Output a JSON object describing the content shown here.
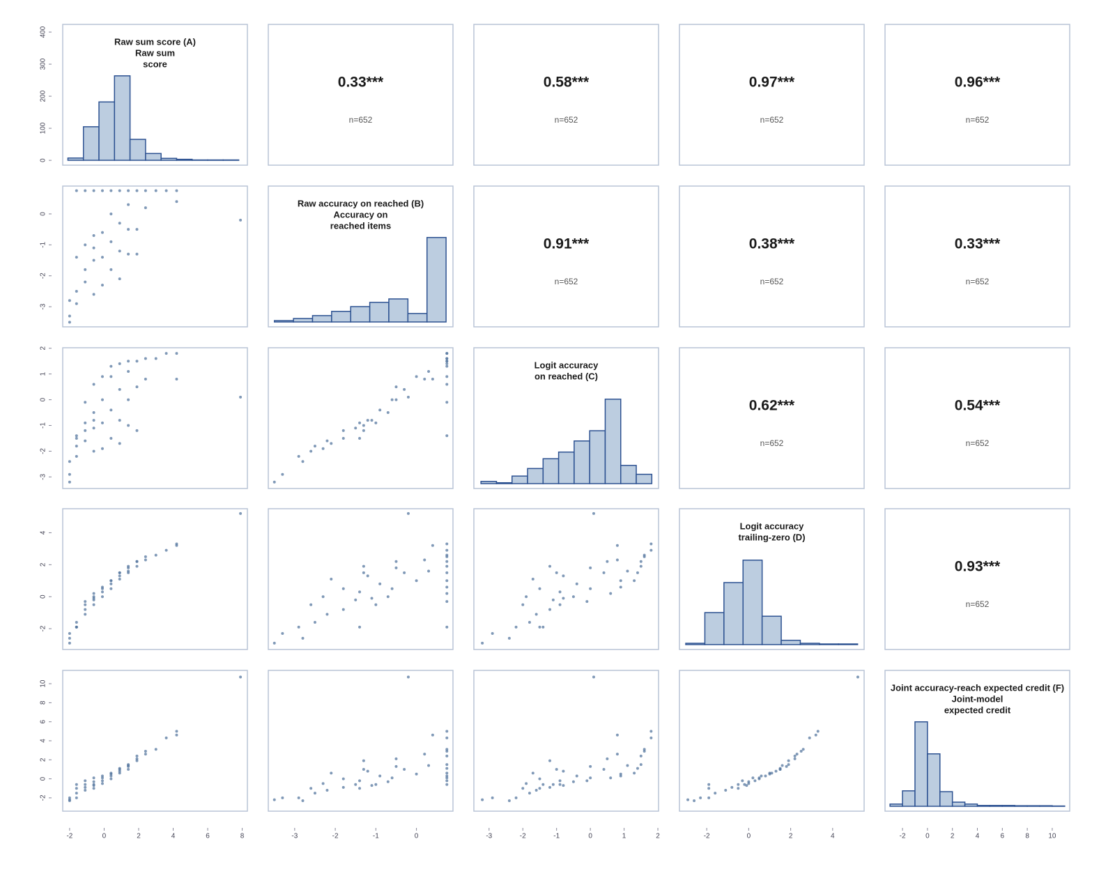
{
  "chart_data": {
    "type": "scatter_matrix",
    "point_color": "#55779f",
    "hist_fill": "#bccde0",
    "hist_stroke": "#2c5191",
    "panel_border": "#b8c4d6",
    "count_ylim": [
      -15,
      424
    ],
    "count_ticks": [
      0,
      100,
      200,
      300,
      400
    ],
    "variables": [
      {
        "label": [
          "Raw sum score (A)",
          "Raw sum",
          "score"
        ],
        "lim": [
          -2.4,
          8.3
        ],
        "xticks": [
          -2,
          0,
          2,
          4,
          6,
          8
        ],
        "hist_bins": [
          -2.1,
          -1.2,
          -0.3,
          0.6,
          1.5,
          2.4,
          3.3,
          4.2,
          5.1,
          6.0,
          6.9,
          7.8
        ],
        "hist_counts": [
          7,
          104,
          181,
          262,
          65,
          21,
          6,
          3,
          1,
          1,
          1
        ]
      },
      {
        "label": [
          "Raw accuracy on reached (B)",
          "Accuracy on",
          "reached items"
        ],
        "lim": [
          -3.65,
          0.9
        ],
        "xticks": [
          -3,
          -2,
          -1,
          0
        ],
        "yticks": [
          -3,
          -2,
          -1,
          0
        ],
        "hist_bins": [
          -3.5,
          -3.03,
          -2.56,
          -2.09,
          -1.62,
          -1.15,
          -0.68,
          -0.21,
          0.26,
          0.73
        ],
        "hist_counts": [
          5,
          13,
          24,
          40,
          58,
          74,
          87,
          32,
          319
        ]
      },
      {
        "label": [
          "Logit accuracy",
          "on reached (C)"
        ],
        "lim": [
          -3.45,
          2.02
        ],
        "xticks": [
          -3,
          -2,
          -1,
          0,
          1,
          2
        ],
        "yticks": [
          -3,
          -2,
          -1,
          0,
          1,
          2
        ],
        "hist_bins": [
          -3.24,
          -2.78,
          -2.32,
          -1.86,
          -1.4,
          -0.94,
          -0.48,
          -0.02,
          0.44,
          0.9,
          1.36,
          1.82
        ],
        "hist_counts": [
          5,
          2,
          17,
          34,
          56,
          71,
          96,
          119,
          190,
          41,
          21
        ]
      },
      {
        "label": [
          "Logit accuracy",
          "trailing-zero (D)"
        ],
        "lim": [
          -3.3,
          5.5
        ],
        "xticks": [
          -2,
          0,
          2,
          4
        ],
        "yticks": [
          -2,
          0,
          2,
          4
        ],
        "hist_bins": [
          -3.0,
          -2.09,
          -1.18,
          -0.27,
          0.64,
          1.55,
          2.46,
          3.37,
          4.28,
          5.19
        ],
        "hist_counts": [
          4,
          97,
          188,
          256,
          86,
          13,
          4,
          2,
          2
        ]
      },
      {
        "label": [
          "Joint accuracy-reach expected credit (F)",
          "Joint-model",
          "expected credit"
        ],
        "lim": [
          -3.4,
          11.4
        ],
        "xticks": [
          -2,
          0,
          2,
          4,
          6,
          8,
          10
        ],
        "yticks": [
          -2,
          0,
          2,
          4,
          6,
          8,
          10
        ],
        "hist_bins": [
          -3,
          -2,
          -1,
          0,
          1,
          2,
          3,
          4,
          5,
          6,
          7,
          8,
          9,
          10,
          11
        ],
        "hist_counts": [
          8,
          56,
          306,
          190,
          53,
          15,
          8,
          3,
          3,
          3,
          2,
          2,
          2,
          1
        ]
      }
    ],
    "correlations": [
      [
        {
          "label": "0.33***",
          "n": "n=652"
        },
        {
          "label": "0.58***",
          "n": "n=652"
        },
        {
          "label": "0.97***",
          "n": "n=652"
        },
        {
          "label": "0.96***",
          "n": "n=652"
        }
      ],
      [
        {
          "label": "0.91***",
          "n": "n=652"
        },
        {
          "label": "0.38***",
          "n": "n=652"
        },
        {
          "label": "0.33***",
          "n": "n=652"
        }
      ],
      [
        {
          "label": "0.62***",
          "n": "n=652"
        },
        {
          "label": "0.54***",
          "n": "n=652"
        }
      ],
      [
        {
          "label": "0.93***",
          "n": "n=652"
        }
      ]
    ],
    "points": [
      [
        -2.0,
        -3.5,
        -3.2,
        -2.9,
        -2.2
      ],
      [
        -2.0,
        -3.3,
        -2.9,
        -2.3,
        -2.0
      ],
      [
        -1.6,
        -2.9,
        -2.2,
        -1.9,
        -2.0
      ],
      [
        -1.6,
        -2.5,
        -1.8,
        -1.6,
        -1.5
      ],
      [
        -1.6,
        -1.4,
        -1.5,
        -1.9,
        -1.0
      ],
      [
        -1.6,
        0.75,
        -1.4,
        -1.9,
        -0.6
      ],
      [
        -1.1,
        -2.2,
        -1.6,
        -1.1,
        -1.2
      ],
      [
        -1.1,
        -1.8,
        -1.2,
        -0.8,
        -0.9
      ],
      [
        -1.1,
        -1.0,
        -0.9,
        -0.5,
        -0.6
      ],
      [
        -1.1,
        0.75,
        -0.1,
        -0.3,
        -0.2
      ],
      [
        -0.6,
        -2.6,
        -2.0,
        -0.5,
        -1.0
      ],
      [
        -0.6,
        -1.5,
        -1.1,
        -0.2,
        -0.6
      ],
      [
        -0.6,
        -0.7,
        -0.5,
        0.0,
        -0.3
      ],
      [
        -0.6,
        0.75,
        0.6,
        0.2,
        0.1
      ],
      [
        -0.1,
        -2.3,
        -1.9,
        0.0,
        -0.5
      ],
      [
        -0.1,
        -1.4,
        -0.9,
        0.3,
        -0.2
      ],
      [
        -0.1,
        -0.6,
        0.0,
        0.5,
        0.1
      ],
      [
        -0.1,
        0.75,
        0.9,
        0.6,
        0.3
      ],
      [
        0.4,
        -1.8,
        -1.5,
        0.5,
        0.0
      ],
      [
        0.4,
        -0.9,
        -0.4,
        0.8,
        0.3
      ],
      [
        0.4,
        0.0,
        0.9,
        1.0,
        0.5
      ],
      [
        0.4,
        0.75,
        1.3,
        1.0,
        0.6
      ],
      [
        0.9,
        -2.1,
        -1.7,
        1.1,
        0.6
      ],
      [
        0.9,
        -1.2,
        -0.8,
        1.3,
        0.8
      ],
      [
        0.9,
        -0.3,
        0.4,
        1.5,
        1.0
      ],
      [
        0.9,
        0.75,
        1.4,
        1.5,
        1.1
      ],
      [
        1.4,
        -1.3,
        -1.0,
        1.5,
        1.0
      ],
      [
        1.4,
        -0.5,
        0.0,
        1.8,
        1.3
      ],
      [
        1.4,
        0.75,
        1.5,
        1.9,
        1.5
      ],
      [
        1.9,
        -1.3,
        -1.2,
        1.9,
        1.9
      ],
      [
        1.9,
        -0.5,
        0.5,
        2.2,
        2.1
      ],
      [
        1.9,
        0.75,
        1.5,
        2.2,
        2.4
      ],
      [
        2.4,
        0.2,
        0.8,
        2.3,
        2.6
      ],
      [
        2.4,
        0.75,
        1.6,
        2.5,
        2.9
      ],
      [
        3.0,
        0.75,
        1.6,
        2.6,
        3.1
      ],
      [
        3.6,
        0.75,
        1.8,
        2.9,
        4.3
      ],
      [
        4.2,
        0.4,
        0.8,
        3.2,
        4.6
      ],
      [
        4.2,
        0.75,
        1.8,
        3.3,
        5.0
      ],
      [
        7.9,
        -0.2,
        0.1,
        5.2,
        10.7
      ],
      [
        -2.0,
        -2.8,
        -2.4,
        -2.6,
        -2.3
      ],
      [
        1.4,
        0.3,
        1.1,
        1.6,
        1.4
      ],
      [
        -0.6,
        -1.1,
        -0.8,
        -0.1,
        -0.7
      ]
    ]
  }
}
